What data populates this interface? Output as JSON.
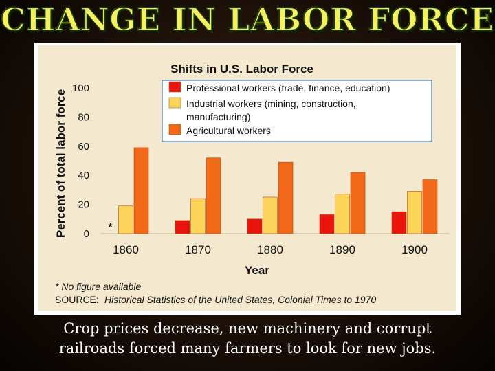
{
  "slide": {
    "title": "CHANGE IN LABOR FORCE",
    "caption_line1": "Crop prices decrease, new machinery and corrupt",
    "caption_line2": "railroads forced many farmers to look for new jobs."
  },
  "chart_data": {
    "type": "bar",
    "title": "Shifts in U.S. Labor Force",
    "xlabel": "Year",
    "ylabel": "Percent of total labor force",
    "ylim": [
      0,
      100
    ],
    "yticks": [
      0,
      20,
      40,
      60,
      80,
      100
    ],
    "grid": false,
    "legend_position": "top-right",
    "categories": [
      "1860",
      "1870",
      "1880",
      "1890",
      "1900"
    ],
    "series": [
      {
        "name": "Professional workers (trade, finance, education)",
        "color": "#e8140c",
        "values": [
          null,
          9,
          10,
          13,
          15
        ]
      },
      {
        "name": "Industrial workers (mining, construction, manufacturing)",
        "color": "#fcd45a",
        "values": [
          19,
          24,
          25,
          27,
          29
        ]
      },
      {
        "name": "Agricultural workers",
        "color": "#f06818",
        "values": [
          59,
          52,
          49,
          42,
          37
        ]
      }
    ],
    "legend_lines": [
      [
        "Professional workers (trade, finance, education)"
      ],
      [
        "Industrial workers (mining, construction,",
        "manufacturing)"
      ],
      [
        "Agricultural workers"
      ]
    ],
    "missing_marker": "*",
    "footnote": "* No figure available",
    "source_label": "SOURCE:",
    "source_text": "Historical Statistics of the United States, Colonial Times to 1970"
  }
}
